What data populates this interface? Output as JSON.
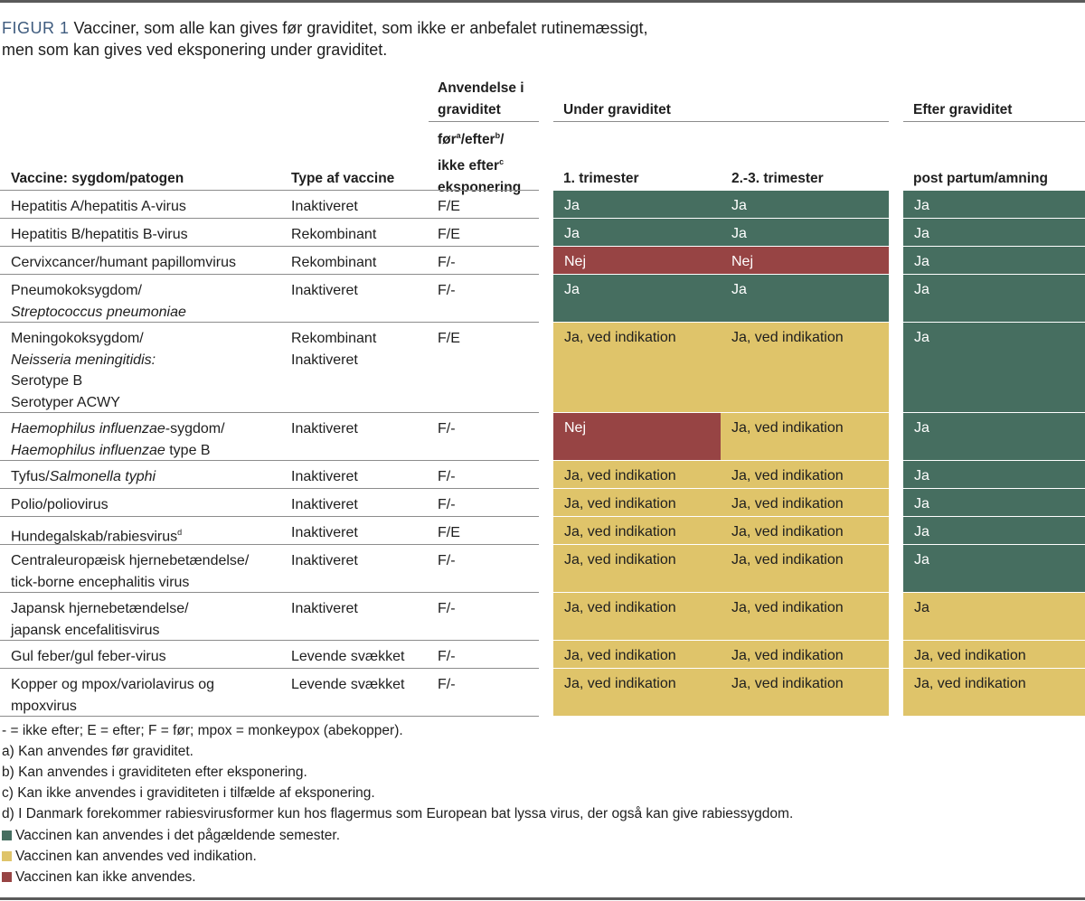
{
  "caption": {
    "label": "FIGUR 1",
    "line1": "Vacciner, som alle kan gives før graviditet, som ikke er anbefalet rutinemæssigt,",
    "line2": "men som kan gives ved eksponering under graviditet."
  },
  "headers": {
    "anvendelse": [
      "Anvendelse i",
      "graviditet"
    ],
    "foer_efter": [
      "før",
      "a",
      "/efter",
      "b",
      "/",
      "ikke efter",
      "c",
      "eksponering"
    ],
    "under": "Under graviditet",
    "efter": "Efter graviditet",
    "vaccine": "Vaccine: sygdom/patogen",
    "type": "Type af vaccine",
    "trim1": "1. trimester",
    "trim23": "2.-3. trimester",
    "postpartum": "post partum/amning"
  },
  "rows": {
    "hepA": {
      "vaccine": "Hepatitis A/hepatitis A-virus",
      "type": "Inaktiveret",
      "use": "F/E",
      "t1": "Ja",
      "t23": "Ja",
      "pp": "Ja"
    },
    "hepB": {
      "vaccine": "Hepatitis B/hepatitis B-virus",
      "type": "Rekombinant",
      "use": "F/E",
      "t1": "Ja",
      "t23": "Ja",
      "pp": "Ja"
    },
    "hpv": {
      "vaccine": "Cervixcancer/humant papillomvirus",
      "type": "Rekombinant",
      "use": "F/-",
      "t1": "Nej",
      "t23": "Nej",
      "pp": "Ja"
    },
    "pneumo": {
      "vaccine_l1": "Pneumokoksygdom/",
      "vaccine_l2": "Streptococcus pneumoniae",
      "type": "Inaktiveret",
      "use": "F/-",
      "t1": "Ja",
      "t23": "Ja",
      "pp": "Ja"
    },
    "mening": {
      "vaccine_l1": "Meningokoksygdom/",
      "vaccine_l2": "Neisseria meningitidis:",
      "vaccine_l3": "Serotype B",
      "vaccine_l4": "Serotyper ACWY",
      "type_l1": "Rekombinant",
      "type_l2": "Inaktiveret",
      "use": "F/E",
      "t1": "Ja, ved indikation",
      "t23": "Ja, ved indikation",
      "pp": "Ja"
    },
    "hib": {
      "vaccine_l1a": "Haemophilus influenzae",
      "vaccine_l1b": "-sygdom/",
      "vaccine_l2a": "Haemophilus influenzae",
      "vaccine_l2b": " type B",
      "type": "Inaktiveret",
      "use": "F/-",
      "t1": "Nej",
      "t23": "Ja, ved indikation",
      "pp": "Ja"
    },
    "tyfus": {
      "vaccine_a": "Tyfus/",
      "vaccine_b": "Salmonella typhi",
      "type": "Inaktiveret",
      "use": "F/-",
      "t1": "Ja, ved indikation",
      "t23": "Ja, ved indikation",
      "pp": "Ja"
    },
    "polio": {
      "vaccine": "Polio/poliovirus",
      "type": "Inaktiveret",
      "use": "F/-",
      "t1": "Ja, ved indikation",
      "t23": "Ja, ved indikation",
      "pp": "Ja"
    },
    "rabies": {
      "vaccine": "Hundegalskab/rabiesvirus",
      "sup": "d",
      "type": "Inaktiveret",
      "use": "F/E",
      "t1": "Ja, ved indikation",
      "t23": "Ja, ved indikation",
      "pp": "Ja"
    },
    "tbe": {
      "vaccine_l1": "Centraleuropæisk hjernebetændelse/",
      "vaccine_l2": "tick-borne encephalitis virus",
      "type": "Inaktiveret",
      "use": "F/-",
      "t1": "Ja, ved indikation",
      "t23": "Ja, ved indikation",
      "pp": "Ja"
    },
    "japansk": {
      "vaccine_l1": "Japansk hjernebetændelse/",
      "vaccine_l2": "japansk encefalitisvirus",
      "type": "Inaktiveret",
      "use": "F/-",
      "t1": "Ja, ved indikation",
      "t23": "Ja, ved indikation",
      "pp": "Ja"
    },
    "gulfeber": {
      "vaccine": "Gul feber/gul feber-virus",
      "type": "Levende svækket",
      "use": "F/-",
      "t1": "Ja, ved indikation",
      "t23": "Ja, ved indikation",
      "pp": "Ja, ved indikation"
    },
    "kopper": {
      "vaccine_l1": "Kopper og mpox/variolavirus og",
      "vaccine_l2": "mpoxvirus",
      "type": "Levende svækket",
      "use": "F/-",
      "t1": "Ja, ved indikation",
      "t23": "Ja, ved indikation",
      "pp": "Ja, ved indikation"
    }
  },
  "footnotes": {
    "abbr": "- = ikke efter; E = efter; F = før; mpox = monkeypox (abekopper).",
    "a": "a) Kan anvendes før graviditet.",
    "b": "b) Kan anvendes i graviditeten efter eksponering.",
    "c": "c) Kan ikke anvendes i graviditeten i tilfælde af eksponering.",
    "d": "d) I Danmark forekommer rabiesvirusformer kun hos flagermus som European bat lyssa virus, der også kan give rabiessygdom."
  },
  "legend": {
    "green": "Vaccinen kan anvendes i det pågældende semester.",
    "yellow": "Vaccinen kan anvendes ved indikation.",
    "red": "Vaccinen kan ikke anvendes."
  },
  "colors": {
    "green": "#466e60",
    "yellow": "#dfc46a",
    "red": "#974444",
    "caption_label": "#3e5b7e"
  }
}
